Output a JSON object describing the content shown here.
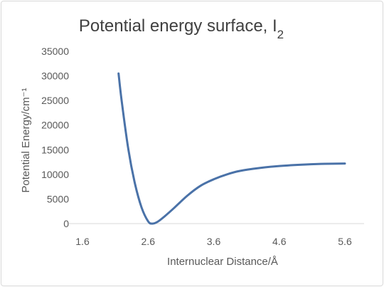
{
  "chart_data": {
    "type": "line",
    "title": "Potential energy surface, I",
    "title_subscript": "2",
    "xlabel": "Internuclear Distance/Å",
    "ylabel": "Potential Energy/cm⁻¹",
    "xlim": [
      1.6,
      5.6
    ],
    "ylim": [
      0,
      35000
    ],
    "xticks": [
      "1.6",
      "2.6",
      "3.6",
      "4.6",
      "5.6"
    ],
    "yticks": [
      "0",
      "5000",
      "10000",
      "15000",
      "20000",
      "25000",
      "30000",
      "35000"
    ],
    "grid": false,
    "legend": "none",
    "series": [
      {
        "color": "#4a72a8",
        "x": [
          2.15,
          2.2,
          2.3,
          2.4,
          2.5,
          2.6,
          2.666,
          2.75,
          2.85,
          3.0,
          3.2,
          3.4,
          3.6,
          3.8,
          4.0,
          4.3,
          4.6,
          5.0,
          5.3,
          5.6
        ],
        "y": [
          30500,
          24600,
          15000,
          8100,
          3300,
          470,
          0,
          420,
          1450,
          3230,
          5700,
          7700,
          9000,
          10000,
          10700,
          11300,
          11700,
          12000,
          12150,
          12200
        ]
      }
    ]
  }
}
